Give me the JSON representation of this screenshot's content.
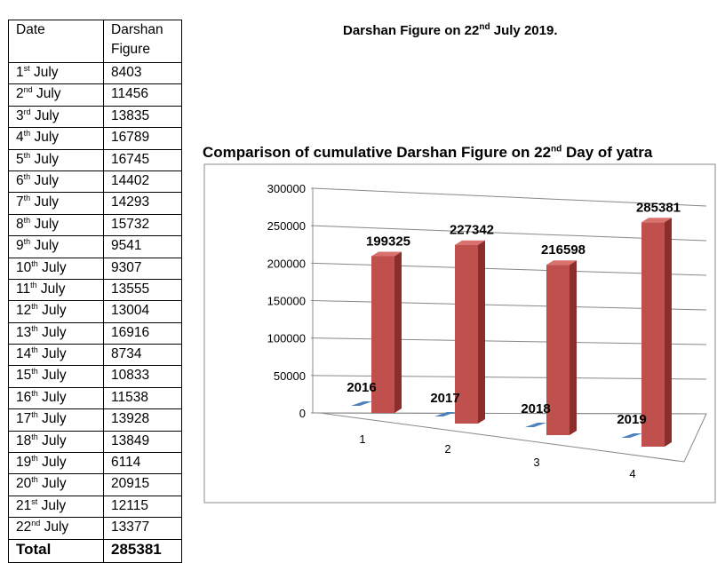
{
  "table": {
    "header": {
      "date": "Date",
      "figure": "Darshan Figure"
    },
    "rows": [
      {
        "num": "1",
        "suf": "st",
        "mon": "July",
        "val": "8403"
      },
      {
        "num": "2",
        "suf": "nd",
        "mon": "July",
        "val": "11456"
      },
      {
        "num": "3",
        "suf": "rd",
        "mon": "July",
        "val": "13835"
      },
      {
        "num": "4",
        "suf": "th",
        "mon": "July",
        "val": "16789"
      },
      {
        "num": "5",
        "suf": "th",
        "mon": "July",
        "val": "16745"
      },
      {
        "num": "6",
        "suf": "th",
        "mon": "July",
        "val": "14402"
      },
      {
        "num": "7",
        "suf": "th",
        "mon": "July",
        "val": "14293"
      },
      {
        "num": "8",
        "suf": "th",
        "mon": "July",
        "val": "15732"
      },
      {
        "num": "9",
        "suf": "th",
        "mon": "July",
        "val": "9541"
      },
      {
        "num": "10",
        "suf": "th",
        "mon": "July",
        "val": "9307"
      },
      {
        "num": "11",
        "suf": "th",
        "mon": "July",
        "val": "13555"
      },
      {
        "num": "12",
        "suf": "th",
        "mon": "July",
        "val": "13004"
      },
      {
        "num": "13",
        "suf": "th",
        "mon": "July",
        "val": "16916"
      },
      {
        "num": "14",
        "suf": "th",
        "mon": "July",
        "val": "8734"
      },
      {
        "num": "15",
        "suf": "th",
        "mon": "July",
        "val": "10833"
      },
      {
        "num": "16",
        "suf": "th",
        "mon": "July",
        "val": "11538"
      },
      {
        "num": "17",
        "suf": "th",
        "mon": "July",
        "val": "13928"
      },
      {
        "num": "18",
        "suf": "th",
        "mon": "July",
        "val": "13849"
      },
      {
        "num": "19",
        "suf": "th",
        "mon": "July",
        "val": "6114"
      },
      {
        "num": "20",
        "suf": "th",
        "mon": "July",
        "val": "20915"
      },
      {
        "num": "21",
        "suf": "st",
        "mon": "July",
        "val": "12115"
      },
      {
        "num": "22",
        "suf": "nd",
        "mon": "July",
        "val": "13377"
      }
    ],
    "total": {
      "label": "Total",
      "value": "285381"
    }
  },
  "heading": {
    "pre": "Darshan Figure on 22",
    "sup": "nd",
    "post": " July 2019."
  },
  "chart_data": {
    "type": "bar",
    "title": {
      "pre": "Comparison of cumulative Darshan Figure on 22",
      "sup": "nd",
      "post": " Day of yatra"
    },
    "categories": [
      "1",
      "2",
      "3",
      "4"
    ],
    "series": [
      {
        "values": [
          0,
          0,
          0,
          0
        ],
        "labels": [
          "2016",
          "2017",
          "2018",
          "2019"
        ],
        "color": "#4f81bd"
      },
      {
        "values": [
          199325,
          227342,
          216598,
          285381
        ],
        "labels": [
          "199325",
          "227342",
          "216598",
          "285381"
        ],
        "color": "#c0504d"
      }
    ],
    "ylim": [
      0,
      300000
    ],
    "yticks": [
      "0",
      "50000",
      "100000",
      "150000",
      "200000",
      "250000",
      "300000"
    ],
    "grid": true,
    "three_d": true,
    "legend": "none"
  }
}
